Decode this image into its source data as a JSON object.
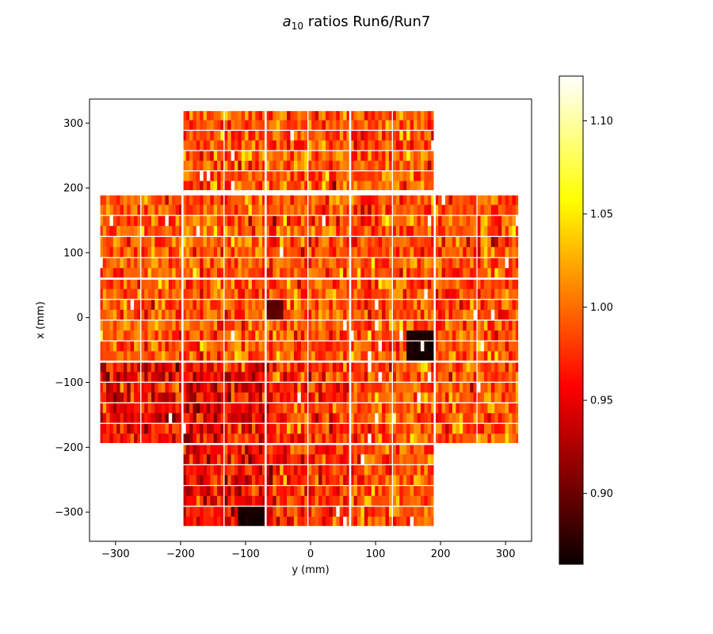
{
  "chart_data": {
    "type": "heatmap",
    "title": {
      "prefix": "a",
      "subscript": "10",
      "suffix": " ratios Run6/Run7"
    },
    "xlabel": "y (mm)",
    "ylabel": "x (mm)",
    "xlim": [
      -340,
      340
    ],
    "ylim": [
      -345,
      337
    ],
    "xticks": [
      -300,
      -200,
      -100,
      0,
      100,
      200,
      300
    ],
    "xtick_labels": [
      "−300",
      "−200",
      "−100",
      "0",
      "100",
      "200",
      "300"
    ],
    "yticks": [
      300,
      200,
      100,
      0,
      -100,
      -200,
      -300
    ],
    "ytick_labels": [
      "300",
      "200",
      "100",
      "0",
      "−100",
      "−200",
      "−300"
    ],
    "colormap": "hot",
    "colorbar": {
      "vmin": 0.862,
      "vmax": 1.124,
      "ticks": [
        0.9,
        0.95,
        1.0,
        1.05,
        1.1
      ],
      "tick_labels": [
        "0.90",
        "0.95",
        "1.00",
        "1.05",
        "1.10"
      ]
    },
    "grid": false,
    "detector_layout": {
      "module_width_mm": 86.5,
      "module_height_mm": 86.5,
      "columns_y_mm": [
        -323.5,
        -193.5,
        -65,
        65,
        193.5,
        323.5
      ],
      "rows_x_mm": [
        320,
        190,
        60,
        -68,
        -195,
        -323
      ],
      "module_rows": 9,
      "module_cols": 2,
      "cells_per_row": 24
    },
    "notable_low_regions": [
      {
        "y_range": [
          -110,
          -70
        ],
        "x_range": [
          -320,
          -285
        ],
        "value": 0.862
      },
      {
        "y_range": [
          148,
          190
        ],
        "x_range": [
          -65,
          -25
        ],
        "value": 0.862
      },
      {
        "y_range": [
          -70,
          -40
        ],
        "x_range": [
          20,
          0
        ],
        "value": 0.89
      }
    ],
    "typical_value": 0.99
  }
}
